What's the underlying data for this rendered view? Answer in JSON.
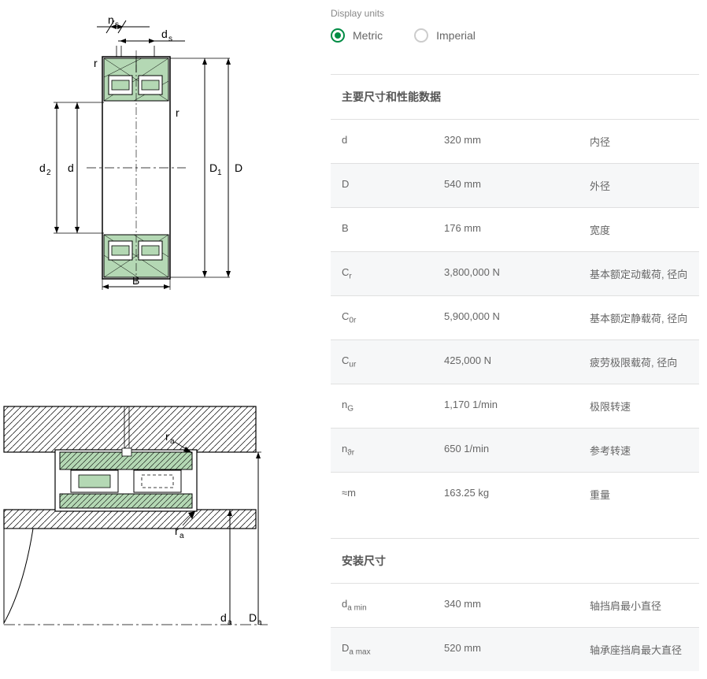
{
  "display_units": {
    "label": "Display units",
    "options": [
      {
        "label": "Metric",
        "selected": true
      },
      {
        "label": "Imperial",
        "selected": false
      }
    ]
  },
  "sections": [
    {
      "title": "主要尺寸和性能数据",
      "rows": [
        {
          "symbol_html": "d",
          "value": "320 mm",
          "desc": "内径",
          "alt": false
        },
        {
          "symbol_html": "D",
          "value": "540 mm",
          "desc": "外径",
          "alt": true
        },
        {
          "symbol_html": "B",
          "value": "176 mm",
          "desc": "宽度",
          "alt": false
        },
        {
          "symbol_html": "C<span class='sub'>r</span>",
          "value": "3,800,000 N",
          "desc": "基本额定动载荷, 径向",
          "alt": true
        },
        {
          "symbol_html": "C<span class='sub'>0r</span>",
          "value": "5,900,000 N",
          "desc": "基本额定静载荷, 径向",
          "alt": false
        },
        {
          "symbol_html": "C<span class='sub'>ur</span>",
          "value": "425,000 N",
          "desc": "疲劳极限载荷, 径向",
          "alt": true
        },
        {
          "symbol_html": "n<span class='sub'>G</span>",
          "value": "1,170 1/min",
          "desc": "极限转速",
          "alt": false
        },
        {
          "symbol_html": "n<span class='sub'>ϑr</span>",
          "value": "650 1/min",
          "desc": "参考转速",
          "alt": true
        },
        {
          "symbol_html": "≈m",
          "value": "163.25 kg",
          "desc": "重量",
          "alt": false
        }
      ]
    },
    {
      "title": "安装尺寸",
      "rows": [
        {
          "symbol_html": "d<span class='sub'>a min</span>",
          "value": "340 mm",
          "desc": "轴挡肩最小直径",
          "alt": false
        },
        {
          "symbol_html": "D<span class='sub'>a max</span>",
          "value": "520 mm",
          "desc": "轴承座挡肩最大直径",
          "alt": true
        }
      ]
    }
  ],
  "diagram1_labels": {
    "ns": "n",
    "ds": "d",
    "r1": "r",
    "r2": "r",
    "d2": "d",
    "d": "d",
    "D1": "D",
    "D": "D",
    "B": "B"
  },
  "diagram2_labels": {
    "ra1": "r",
    "ra2": "r",
    "da": "d",
    "Da": "D"
  },
  "colors": {
    "accent": "#008c44",
    "text": "#666666",
    "row_alt_bg": "#f6f7f8",
    "border": "#e0e0e0",
    "diagram_stroke": "#000000",
    "diagram_fill": "#b4d8b4"
  }
}
